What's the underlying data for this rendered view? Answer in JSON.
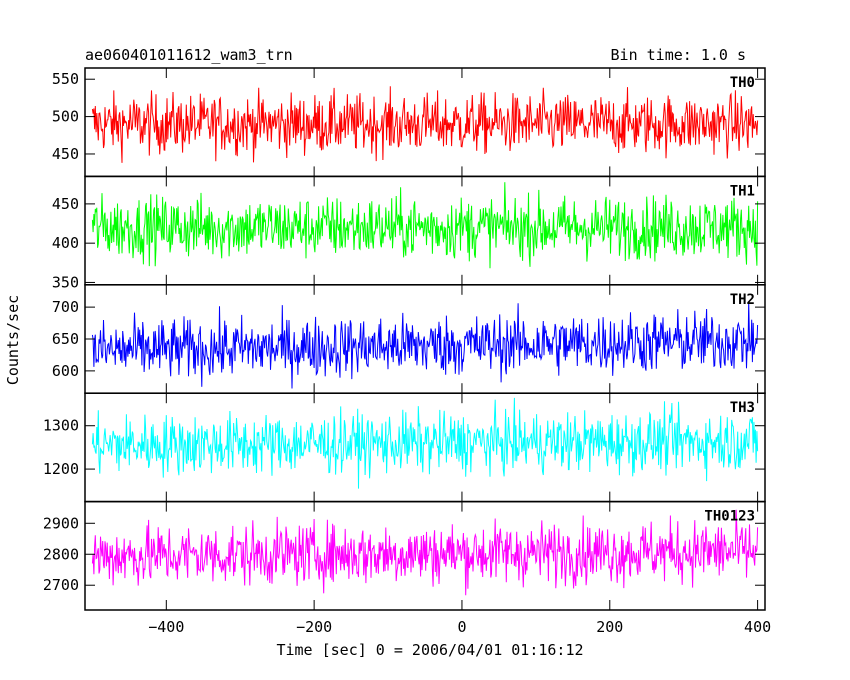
{
  "chart_data": {
    "type": "line",
    "title": "ae060401011612_wam3_trn",
    "subtitle": "Bin time: 1.0 s",
    "xlabel": "Time [sec] 0 = 2006/04/01 01:16:12",
    "ylabel": "Counts/sec",
    "xlim": [
      -510,
      410
    ],
    "x_ticks": [
      -400,
      -200,
      0,
      200,
      400
    ],
    "x_tick_labels": [
      "−400",
      "−200",
      "0",
      "200",
      "400"
    ],
    "x_range_data": [
      -500,
      400
    ],
    "grid": false,
    "panels": [
      {
        "name": "TH0",
        "color": "#ff0000",
        "ylim": [
          420,
          565
        ],
        "ymin": 420,
        "ymax": 565,
        "yticks": [
          450,
          500,
          550
        ],
        "mean": 490,
        "noise": 20,
        "trend": 0,
        "clip_low": 420,
        "clip_high": 565
      },
      {
        "name": "TH1",
        "color": "#00ff00",
        "ylim": [
          347,
          485
        ],
        "ymin": 347,
        "ymax": 485,
        "yticks": [
          350,
          400,
          450
        ],
        "mean": 420,
        "noise": 20,
        "trend": 0,
        "clip_low": 350,
        "clip_high": 485
      },
      {
        "name": "TH2",
        "color": "#0000ff",
        "ylim": [
          565,
          735
        ],
        "ymin": 565,
        "ymax": 735,
        "yticks": [
          600,
          650,
          700
        ],
        "mean": 632,
        "noise": 24,
        "trend": 15,
        "clip_low": 570,
        "clip_high": 735
      },
      {
        "name": "TH3",
        "color": "#00ffff",
        "ylim": [
          1125,
          1375
        ],
        "ymin": 1125,
        "ymax": 1375,
        "yticks": [
          1200,
          1300
        ],
        "mean": 1255,
        "noise": 35,
        "trend": 10,
        "clip_low": 1150,
        "clip_high": 1375
      },
      {
        "name": "TH0123",
        "color": "#ff00ff",
        "ylim": [
          2620,
          2970
        ],
        "ymin": 2620,
        "ymax": 2970,
        "yticks": [
          2700,
          2800,
          2900
        ],
        "mean": 2795,
        "noise": 50,
        "trend": 15,
        "clip_low": 2620,
        "clip_high": 2970
      }
    ]
  }
}
